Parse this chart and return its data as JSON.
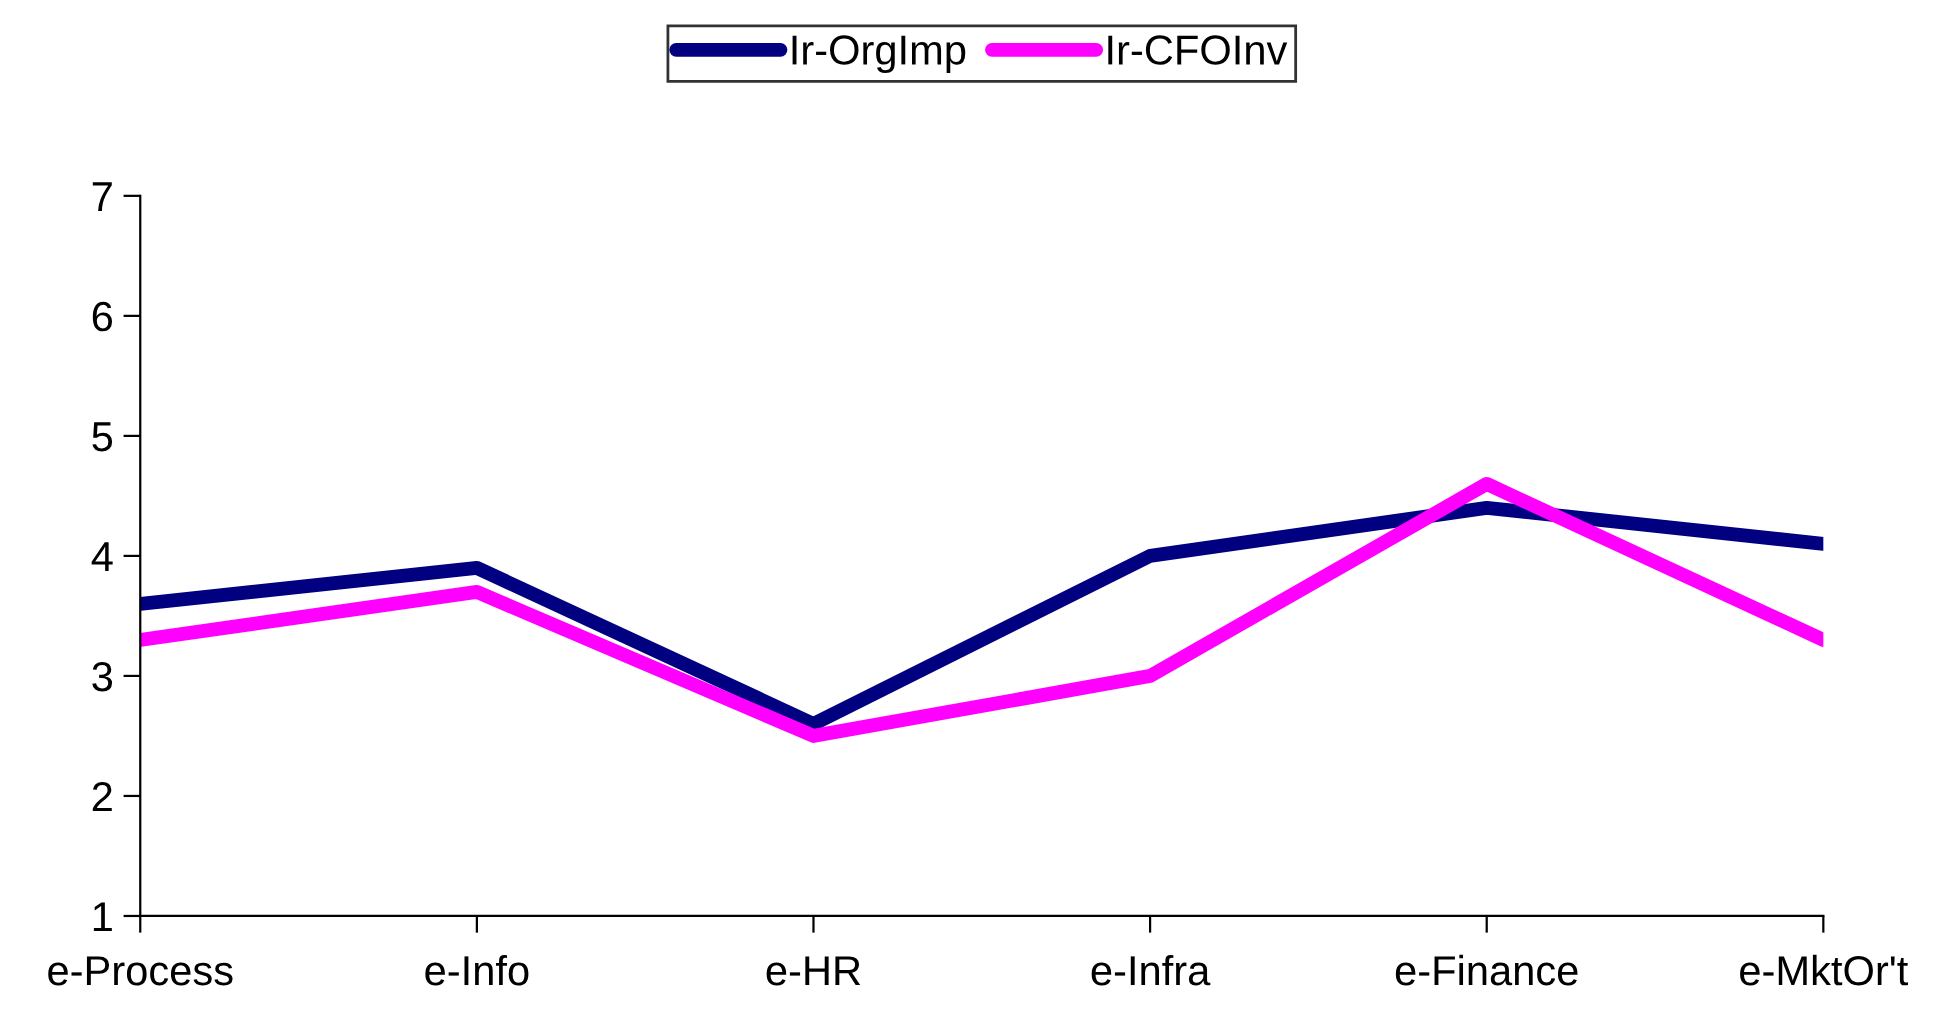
{
  "chart_data": {
    "type": "line",
    "categories": [
      "e-Process",
      "e-Info",
      "e-HR",
      "e-Infra",
      "e-Finance",
      "e-MktOr't"
    ],
    "series": [
      {
        "name": "Ir-OrgImp",
        "color": "#000080",
        "values": [
          3.6,
          3.9,
          2.6,
          4.0,
          4.4,
          4.1
        ]
      },
      {
        "name": "Ir-CFOInv",
        "color": "#ff00ff",
        "values": [
          3.3,
          3.7,
          2.5,
          3.0,
          4.6,
          3.3
        ]
      }
    ],
    "ylim": [
      1,
      7
    ],
    "yticks": [
      1,
      2,
      3,
      4,
      5,
      6,
      7
    ],
    "grid": false,
    "legend": "top",
    "marker": "none",
    "line_style": "solid"
  }
}
